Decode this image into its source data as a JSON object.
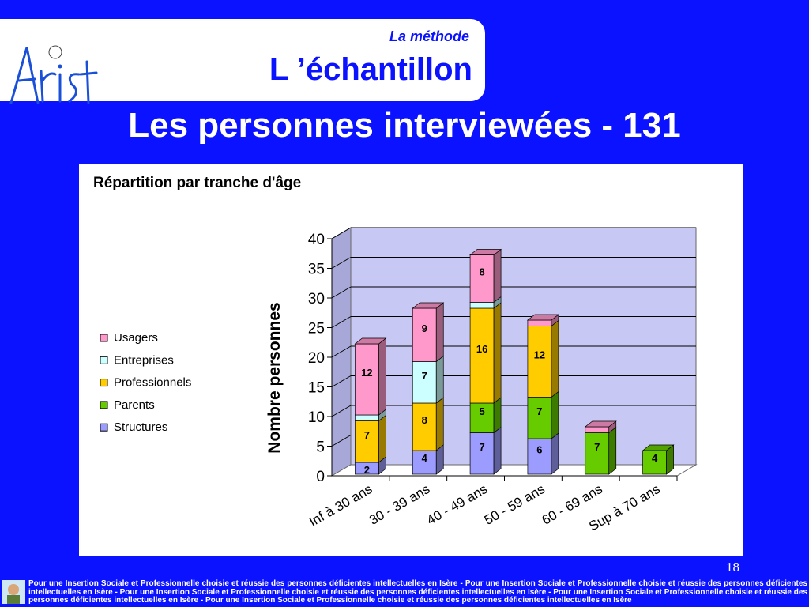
{
  "header": {
    "logo_text": "Arist",
    "method_label": "La méthode",
    "section_title": "L ’échantillon"
  },
  "page_title": "Les personnes interviewées - 131",
  "page_number": "18",
  "footer": {
    "text": "Pour une Insertion Sociale et Professionnelle choisie et réussie des personnes déficientes intellectuelles en Isère - Pour une Insertion Sociale et Professionnelle choisie et réussie des personnes déficientes intellectuelles en Isère - Pour une Insertion Sociale et Professionnelle choisie et réussie des personnes déficientes intellectuelles en Isère - Pour une Insertion Sociale et Professionnelle choisie et réussie des personnes déficientes intellectuelles en Isère - Pour une Insertion Sociale et Professionnelle choisie et réussie des personnes déficientes intellectuelles en Isère"
  },
  "colors": {
    "background": "#0a12ff",
    "plot_area": "#c8c8f4",
    "Structures": "#9c9cff",
    "Parents": "#66cc00",
    "Professionnels": "#ffcc00",
    "Entreprises": "#ccffff",
    "Usagers": "#ff99cc"
  },
  "chart_data": {
    "type": "bar",
    "stacked": true,
    "title": "Répartition par tranche d'âge",
    "xlabel": "",
    "ylabel": "Nombre personnes",
    "ylim": [
      0,
      40
    ],
    "yticks": [
      0,
      5,
      10,
      15,
      20,
      25,
      30,
      35,
      40
    ],
    "grid": true,
    "legend_position": "left",
    "categories": [
      "Inf à 30 ans",
      "30 - 39 ans",
      "40 - 49 ans",
      "50 - 59 ans",
      "60 - 69 ans",
      "Sup à 70 ans"
    ],
    "series": [
      {
        "name": "Structures",
        "values": [
          2,
          4,
          7,
          6,
          0,
          0
        ],
        "labels": [
          "2",
          "4",
          "7",
          "6",
          "",
          ""
        ]
      },
      {
        "name": "Parents",
        "values": [
          0,
          0,
          5,
          7,
          7,
          4
        ],
        "labels": [
          "",
          "",
          "5",
          "7",
          "7",
          "4"
        ]
      },
      {
        "name": "Professionnels",
        "values": [
          7,
          8,
          16,
          12,
          0,
          0
        ],
        "labels": [
          "7",
          "8",
          "16",
          "12",
          "",
          ""
        ]
      },
      {
        "name": "Entreprises",
        "values": [
          1,
          7,
          1,
          0,
          0,
          0
        ],
        "labels": [
          "",
          "7",
          "",
          "",
          "",
          ""
        ]
      },
      {
        "name": "Usagers",
        "values": [
          12,
          9,
          8,
          1,
          1,
          0
        ],
        "labels": [
          "12",
          "9",
          "8",
          "",
          "",
          ""
        ]
      }
    ],
    "legend_order": [
      "Usagers",
      "Entreprises",
      "Professionnels",
      "Parents",
      "Structures"
    ]
  }
}
